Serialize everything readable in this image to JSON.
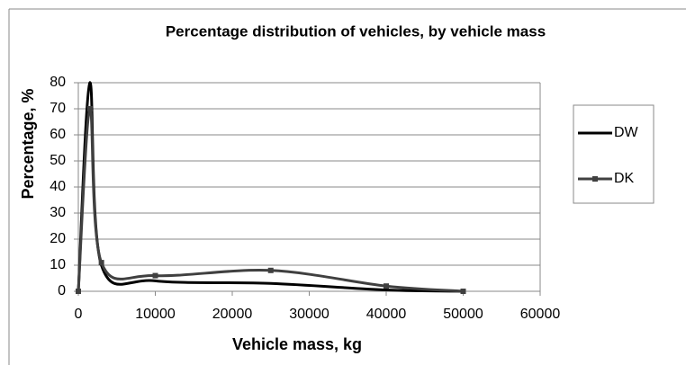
{
  "chart_data": {
    "type": "line",
    "title": "Percentage distribution of vehicles, by vehicle mass",
    "x_label": "Vehicle mass, kg",
    "y_label": "Percentage, %",
    "x": [
      0,
      1500,
      3000,
      10000,
      25000,
      40000,
      50000
    ],
    "series": [
      {
        "name": "DW",
        "color": "#000000",
        "marker": false,
        "values": [
          0,
          80,
          10,
          4,
          3,
          0.5,
          0
        ]
      },
      {
        "name": "DK",
        "color": "#404040",
        "marker": true,
        "values": [
          0,
          70,
          11,
          6,
          8,
          2,
          0
        ]
      }
    ],
    "xlim": [
      0,
      60000
    ],
    "xticks": [
      0,
      10000,
      20000,
      30000,
      40000,
      50000,
      60000
    ],
    "ylim": [
      0,
      80
    ],
    "yticks": [
      0,
      10,
      20,
      30,
      40,
      50,
      60,
      70,
      80
    ],
    "grid": true,
    "legend": "right",
    "smooth": true
  }
}
